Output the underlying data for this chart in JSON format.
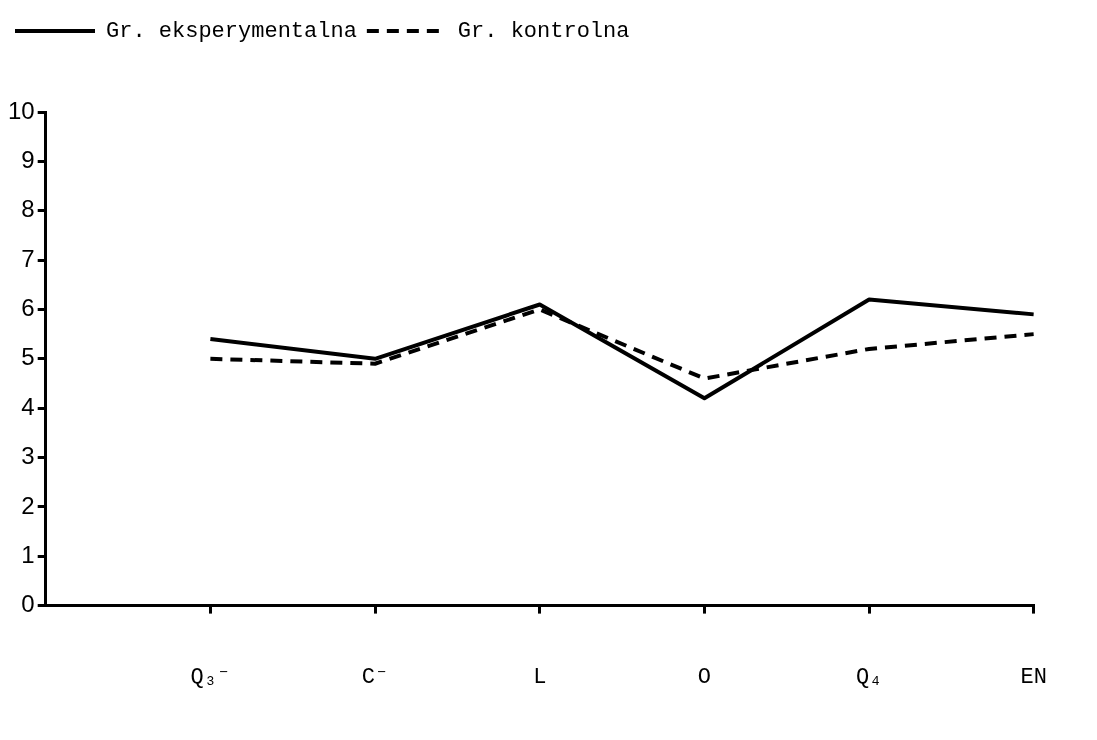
{
  "chart_data": {
    "type": "line",
    "categories": [
      "Q₃⁻",
      "C⁻",
      "L",
      "O",
      "Q₄",
      "EN"
    ],
    "series": [
      {
        "name": "Gr. eksperymentalna",
        "color": "#000000",
        "line_style": "solid",
        "values": [
          5.4,
          5.0,
          6.1,
          4.2,
          6.2,
          5.9
        ]
      },
      {
        "name": "Gr. kontrolna",
        "color": "#000000",
        "line_style": "dashed",
        "values": [
          5.0,
          4.9,
          6.0,
          4.6,
          5.2,
          5.5
        ]
      }
    ],
    "ylim": [
      0,
      10
    ],
    "yticks": [
      0,
      1,
      2,
      3,
      4,
      5,
      6,
      7,
      8,
      9,
      10
    ],
    "grid": false,
    "legend": "top left",
    "marker": "none"
  }
}
